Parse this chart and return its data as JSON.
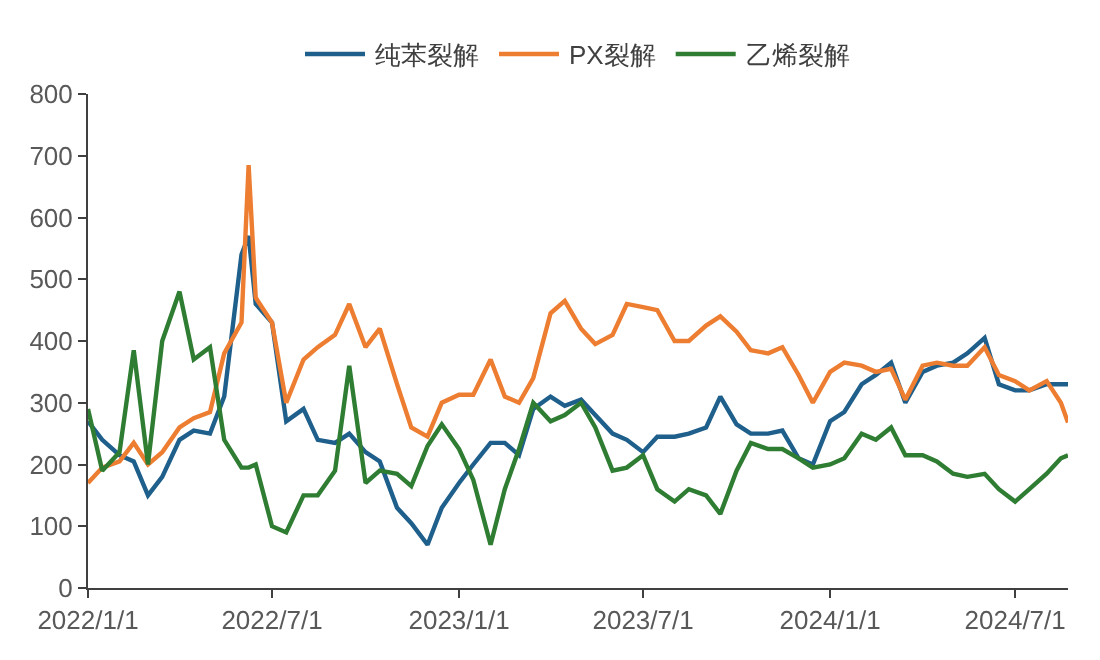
{
  "chart_data": {
    "type": "line",
    "legend": "top",
    "line_style": "solid",
    "marker": "none",
    "x": [
      "2022-01-01",
      "2022-01-15",
      "2022-02-01",
      "2022-02-15",
      "2022-03-01",
      "2022-03-15",
      "2022-04-01",
      "2022-04-15",
      "2022-05-01",
      "2022-05-15",
      "2022-06-01",
      "2022-06-08",
      "2022-06-15",
      "2022-07-01",
      "2022-07-15",
      "2022-08-01",
      "2022-08-15",
      "2022-09-01",
      "2022-09-15",
      "2022-10-01",
      "2022-10-15",
      "2022-11-01",
      "2022-11-15",
      "2022-12-01",
      "2022-12-15",
      "2023-01-01",
      "2023-01-15",
      "2023-02-01",
      "2023-02-15",
      "2023-03-01",
      "2023-03-15",
      "2023-04-01",
      "2023-04-15",
      "2023-05-01",
      "2023-05-15",
      "2023-06-01",
      "2023-06-15",
      "2023-07-01",
      "2023-07-15",
      "2023-08-01",
      "2023-08-15",
      "2023-09-01",
      "2023-09-15",
      "2023-10-01",
      "2023-10-15",
      "2023-11-01",
      "2023-11-15",
      "2023-12-01",
      "2023-12-15",
      "2024-01-01",
      "2024-01-15",
      "2024-02-01",
      "2024-02-15",
      "2024-03-01",
      "2024-03-15",
      "2024-04-01",
      "2024-04-15",
      "2024-05-01",
      "2024-05-15",
      "2024-06-01",
      "2024-06-15",
      "2024-07-01",
      "2024-07-15",
      "2024-08-01",
      "2024-08-15",
      "2024-08-22"
    ],
    "series": [
      {
        "name": "纯苯裂解",
        "color": "#1f5f8b",
        "values": [
          270,
          240,
          215,
          205,
          150,
          180,
          240,
          255,
          250,
          310,
          540,
          570,
          460,
          430,
          270,
          290,
          240,
          235,
          250,
          220,
          205,
          130,
          105,
          70,
          130,
          170,
          200,
          235,
          235,
          215,
          290,
          310,
          295,
          305,
          280,
          250,
          240,
          220,
          245,
          245,
          250,
          260,
          310,
          265,
          250,
          250,
          255,
          210,
          200,
          270,
          285,
          330,
          345,
          365,
          300,
          350,
          360,
          365,
          380,
          405,
          330,
          320,
          320,
          330,
          330,
          330
        ]
      },
      {
        "name": "PX裂解",
        "color": "#ed7d31",
        "values": [
          170,
          195,
          205,
          235,
          200,
          220,
          260,
          275,
          285,
          380,
          430,
          685,
          470,
          430,
          300,
          370,
          390,
          410,
          460,
          390,
          420,
          330,
          260,
          245,
          300,
          313,
          313,
          370,
          310,
          300,
          340,
          445,
          465,
          420,
          395,
          410,
          460,
          455,
          450,
          400,
          400,
          425,
          440,
          415,
          385,
          380,
          390,
          345,
          300,
          350,
          365,
          360,
          350,
          355,
          305,
          360,
          365,
          360,
          360,
          390,
          345,
          335,
          320,
          335,
          300,
          268
        ]
      },
      {
        "name": "乙烯裂解",
        "color": "#2e7d32",
        "values": [
          290,
          190,
          220,
          385,
          200,
          400,
          480,
          370,
          390,
          240,
          195,
          195,
          200,
          100,
          90,
          150,
          150,
          190,
          360,
          170,
          190,
          185,
          165,
          230,
          265,
          225,
          175,
          70,
          160,
          225,
          300,
          270,
          280,
          300,
          260,
          190,
          195,
          215,
          160,
          140,
          160,
          150,
          120,
          190,
          235,
          225,
          225,
          210,
          195,
          200,
          210,
          250,
          240,
          260,
          215,
          215,
          205,
          185,
          180,
          185,
          160,
          140,
          160,
          185,
          210,
          215
        ]
      }
    ],
    "xlim": [
      "2022-01-01",
      "2024-08-22"
    ],
    "xticks": [
      {
        "value": "2022-01-01",
        "label": "2022/1/1"
      },
      {
        "value": "2022-07-01",
        "label": "2022/7/1"
      },
      {
        "value": "2023-01-01",
        "label": "2023/1/1"
      },
      {
        "value": "2023-07-01",
        "label": "2023/7/1"
      },
      {
        "value": "2024-01-01",
        "label": "2024/1/1"
      },
      {
        "value": "2024-07-01",
        "label": "2024/7/1"
      }
    ],
    "ylim": [
      0,
      800
    ],
    "yticks": [
      0,
      100,
      200,
      300,
      400,
      500,
      600,
      700,
      800
    ]
  }
}
